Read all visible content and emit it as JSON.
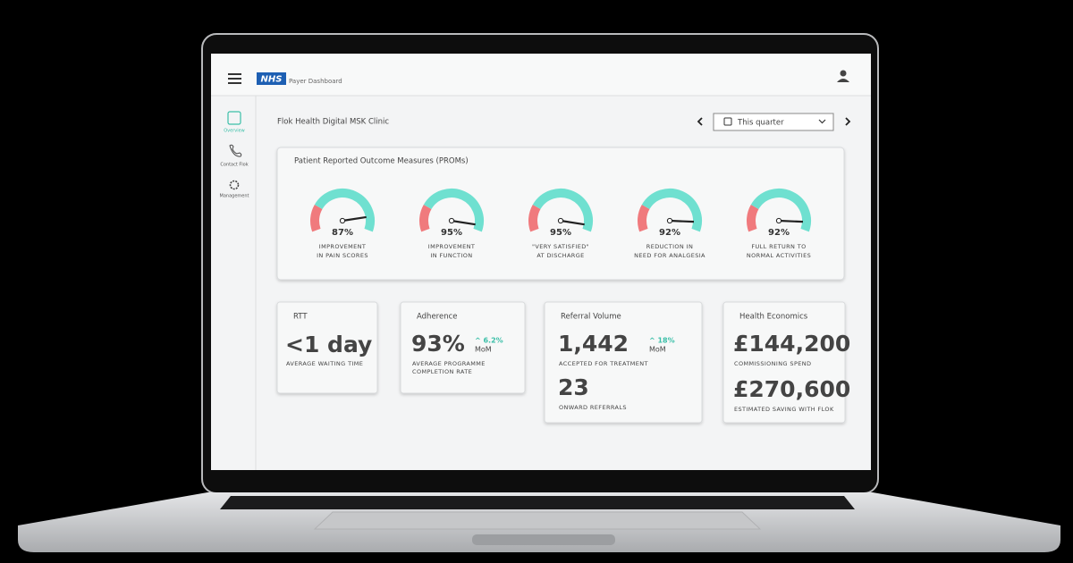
{
  "header": {
    "logo": "NHS",
    "title": "Payer Dashboard"
  },
  "sidebar": [
    "Overview",
    "Contact Flok",
    "Management"
  ],
  "clinic": "Flok Health Digital MSK Clinic",
  "period": "This quarter",
  "proms": {
    "title": "Patient Reported Outcome Measures (PROMs)",
    "gauges": [
      {
        "value": 87,
        "value_label": "87%",
        "caption": [
          "IMPROVEMENT",
          "IN PAIN SCORES"
        ]
      },
      {
        "value": 95,
        "value_label": "95%",
        "caption": [
          "IMPROVEMENT",
          "IN FUNCTION"
        ]
      },
      {
        "value": 95,
        "value_label": "95%",
        "caption": [
          "\"VERY SATISFIED\"",
          "AT DISCHARGE"
        ]
      },
      {
        "value": 92,
        "value_label": "92%",
        "caption": [
          "REDUCTION IN",
          "NEED FOR ANALGESIA"
        ]
      },
      {
        "value": 92,
        "value_label": "92%",
        "caption": [
          "FULL RETURN TO",
          "NORMAL ACTIVITIES"
        ]
      }
    ]
  },
  "cards": [
    {
      "title": "RTT",
      "value": "<1 day",
      "caption": [
        "AVERAGE WAITING TIME"
      ]
    },
    {
      "title": "Adherence",
      "value": "93%",
      "change": "^ 6.2%",
      "change_period": "MoM",
      "caption": [
        "AVERAGE PROGRAMME",
        "COMPLETION RATE"
      ]
    },
    {
      "title": "Referral Volume",
      "value": "1,442",
      "change": "^ 18%",
      "change_period": "MoM",
      "caption": [
        "ACCEPTED FOR TREATMENT"
      ],
      "value2": "23",
      "caption2": "ONWARD REFERRALS"
    },
    {
      "title": "Health Economics",
      "value": "£144,200",
      "caption": [
        "COMMISSIONING SPEND"
      ],
      "value2": "£270,600",
      "caption2": "ESTIMATED SAVING WITH FLOK"
    }
  ]
}
